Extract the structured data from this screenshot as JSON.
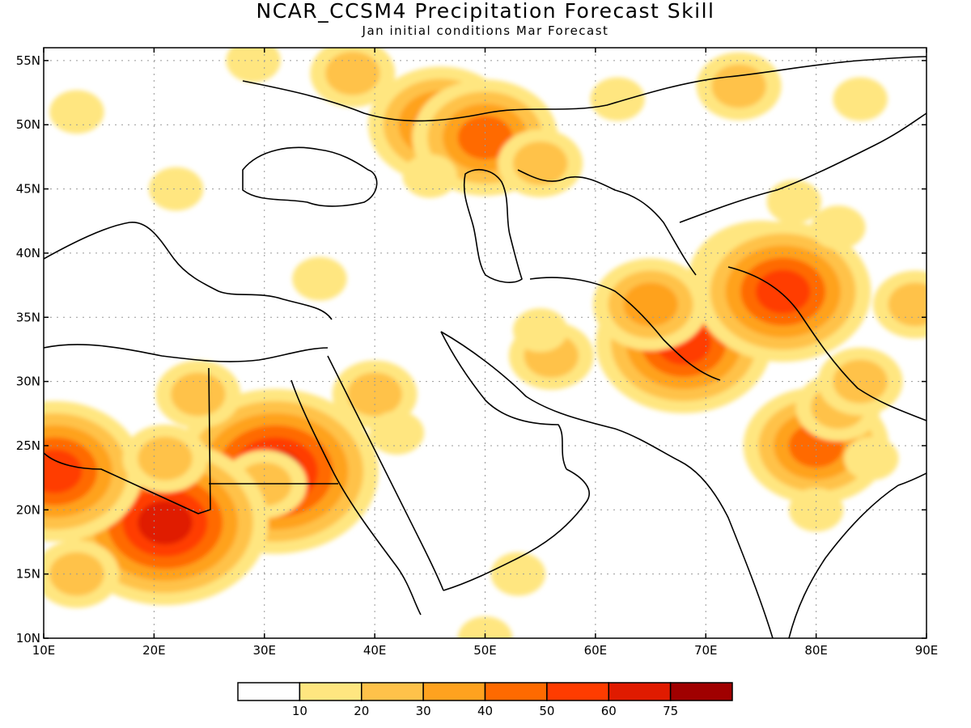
{
  "title": "NCAR_CCSM4 Precipitation Forecast Skill",
  "subtitle": "Jan initial conditions  Mar Forecast",
  "map": {
    "lon_range": [
      10,
      90
    ],
    "lat_range": [
      10,
      56
    ],
    "lon_ticks": [
      {
        "value": 10,
        "label": "10E"
      },
      {
        "value": 20,
        "label": "20E"
      },
      {
        "value": 30,
        "label": "30E"
      },
      {
        "value": 40,
        "label": "40E"
      },
      {
        "value": 50,
        "label": "50E"
      },
      {
        "value": 60,
        "label": "60E"
      },
      {
        "value": 70,
        "label": "70E"
      },
      {
        "value": 80,
        "label": "80E"
      },
      {
        "value": 90,
        "label": "90E"
      }
    ],
    "lat_ticks": [
      {
        "value": 10,
        "label": "10N"
      },
      {
        "value": 15,
        "label": "15N"
      },
      {
        "value": 20,
        "label": "20N"
      },
      {
        "value": 25,
        "label": "25N"
      },
      {
        "value": 30,
        "label": "30N"
      },
      {
        "value": 35,
        "label": "35N"
      },
      {
        "value": 40,
        "label": "40N"
      },
      {
        "value": 45,
        "label": "45N"
      },
      {
        "value": 50,
        "label": "50N"
      },
      {
        "value": 55,
        "label": "55N"
      }
    ],
    "grid": true
  },
  "colorbar": {
    "colors": [
      "#ffffff",
      "#ffe680",
      "#ffc24a",
      "#ffa21f",
      "#ff6a00",
      "#ff3c00",
      "#e01b00",
      "#a00000"
    ],
    "labels": [
      "10",
      "20",
      "30",
      "40",
      "50",
      "60",
      "75"
    ]
  },
  "skill_regions": [
    {
      "lon": 13,
      "lat": 51,
      "level": 1
    },
    {
      "lon": 29,
      "lat": 55,
      "level": 1
    },
    {
      "lon": 38,
      "lat": 54,
      "level": 2
    },
    {
      "lon": 46,
      "lat": 50,
      "level": 4
    },
    {
      "lon": 50,
      "lat": 49,
      "level": 4
    },
    {
      "lon": 45,
      "lat": 46,
      "level": 1
    },
    {
      "lon": 55,
      "lat": 47,
      "level": 2
    },
    {
      "lon": 62,
      "lat": 52,
      "level": 1
    },
    {
      "lon": 73,
      "lat": 53,
      "level": 2
    },
    {
      "lon": 84,
      "lat": 52,
      "level": 1
    },
    {
      "lon": 22,
      "lat": 45,
      "level": 1
    },
    {
      "lon": 35,
      "lat": 38,
      "level": 1
    },
    {
      "lon": 70,
      "lat": 33,
      "level": 3
    },
    {
      "lon": 68,
      "lat": 33,
      "level": 5
    },
    {
      "lon": 65,
      "lat": 36,
      "level": 3
    },
    {
      "lon": 75,
      "lat": 38,
      "level": 4
    },
    {
      "lon": 77,
      "lat": 37,
      "level": 5
    },
    {
      "lon": 56,
      "lat": 32,
      "level": 2
    },
    {
      "lon": 55,
      "lat": 34,
      "level": 1
    },
    {
      "lon": 40,
      "lat": 29,
      "level": 2
    },
    {
      "lon": 42,
      "lat": 26,
      "level": 1
    },
    {
      "lon": 31,
      "lat": 23,
      "level": 6
    },
    {
      "lon": 30,
      "lat": 22,
      "level": 2
    },
    {
      "lon": 21,
      "lat": 19,
      "level": 6
    },
    {
      "lon": 11,
      "lat": 23,
      "level": 5
    },
    {
      "lon": 21,
      "lat": 24,
      "level": 2
    },
    {
      "lon": 13,
      "lat": 15,
      "level": 2
    },
    {
      "lon": 24,
      "lat": 29,
      "level": 2
    },
    {
      "lon": 80,
      "lat": 25,
      "level": 4
    },
    {
      "lon": 82,
      "lat": 28,
      "level": 2
    },
    {
      "lon": 84,
      "lat": 30,
      "level": 2
    },
    {
      "lon": 80,
      "lat": 20,
      "level": 1
    },
    {
      "lon": 85,
      "lat": 24,
      "level": 1
    },
    {
      "lon": 89,
      "lat": 36,
      "level": 2
    },
    {
      "lon": 82,
      "lat": 42,
      "level": 1
    },
    {
      "lon": 78,
      "lat": 44,
      "level": 1
    },
    {
      "lon": 53,
      "lat": 15,
      "level": 1
    },
    {
      "lon": 50,
      "lat": 10,
      "level": 1
    }
  ]
}
